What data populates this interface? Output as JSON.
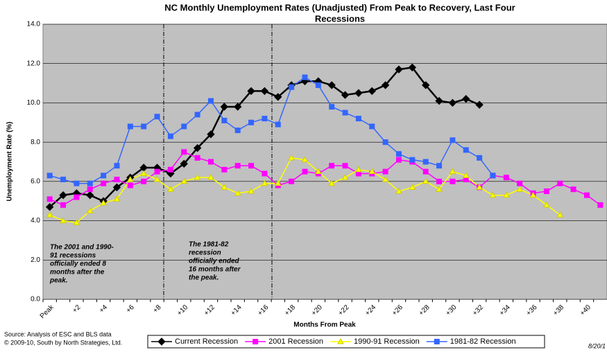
{
  "chart_data": {
    "type": "line",
    "title": [
      "NC Monthly Unemployment Rates (Unadjusted) From Peak to Recovery, Last Four",
      "Recessions"
    ],
    "y_label": "Unemployment Rate (%)",
    "x_label": "Months From Peak",
    "categories": [
      "Peak",
      null,
      "+2",
      null,
      "+4",
      null,
      "+6",
      null,
      "+8",
      null,
      "+10",
      null,
      "+12",
      null,
      "+14",
      null,
      "+16",
      null,
      "+18",
      null,
      "+20",
      null,
      "+22",
      null,
      "+24",
      null,
      "+26",
      null,
      "+28",
      null,
      "+30",
      null,
      "+32",
      null,
      "+34",
      null,
      "+36",
      null,
      "+38",
      null,
      "+40",
      null
    ],
    "ylim": [
      0,
      14
    ],
    "yticks": [
      {
        "value": 0,
        "label": "0.0"
      },
      {
        "value": 2,
        "label": "2.0"
      },
      {
        "value": 4,
        "label": "4.0"
      },
      {
        "value": 6,
        "label": "6.0"
      },
      {
        "value": 8,
        "label": "8.0"
      },
      {
        "value": 10,
        "label": "10.0"
      },
      {
        "value": 12,
        "label": "12.0"
      },
      {
        "value": 14,
        "label": "14.0"
      }
    ],
    "grid": true,
    "series": [
      {
        "name": "Current Recession",
        "color": "#000000",
        "marker": "diamond",
        "values": [
          4.7,
          5.3,
          5.4,
          5.3,
          5.0,
          5.7,
          6.2,
          6.7,
          6.7,
          6.4,
          6.9,
          7.7,
          8.4,
          9.8,
          9.8,
          10.6,
          10.6,
          10.3,
          10.9,
          11.1,
          11.1,
          10.9,
          10.4,
          10.5,
          10.6,
          10.9,
          11.7,
          11.8,
          10.9,
          10.1,
          10.0,
          10.2,
          9.9,
          null,
          null,
          null,
          null,
          null,
          null,
          null,
          null,
          null
        ]
      },
      {
        "name": "2001 Recession",
        "color": "#ff00ff",
        "marker": "square",
        "values": [
          5.1,
          4.8,
          5.2,
          5.6,
          5.9,
          6.1,
          5.8,
          6.0,
          6.5,
          6.6,
          7.5,
          7.2,
          7.0,
          6.6,
          6.8,
          6.8,
          6.4,
          5.8,
          6.0,
          6.5,
          6.4,
          6.8,
          6.8,
          6.4,
          6.4,
          6.5,
          7.1,
          7.0,
          6.5,
          6.0,
          6.0,
          6.1,
          5.7,
          6.3,
          6.2,
          5.9,
          5.4,
          5.5,
          5.9,
          5.6,
          5.3,
          4.8
        ]
      },
      {
        "name": "1990-91 Recession",
        "color": "#ffff00",
        "marker": "triangle",
        "values": [
          4.3,
          4.0,
          3.9,
          4.5,
          4.9,
          5.1,
          6.1,
          6.4,
          6.1,
          5.6,
          6.0,
          6.2,
          6.2,
          5.7,
          5.4,
          5.5,
          5.9,
          5.9,
          7.2,
          7.1,
          6.5,
          5.9,
          6.2,
          6.6,
          6.5,
          6.1,
          5.5,
          5.7,
          6.0,
          5.6,
          6.5,
          6.3,
          5.7,
          5.3,
          5.3,
          5.6,
          5.3,
          4.8,
          4.3,
          null,
          null,
          null
        ]
      },
      {
        "name": "1981-82 Recession",
        "color": "#3366ff",
        "marker": "square",
        "values": [
          6.3,
          6.1,
          5.9,
          5.9,
          6.3,
          6.8,
          8.8,
          8.8,
          9.3,
          8.3,
          8.8,
          9.4,
          10.1,
          9.1,
          8.6,
          9.0,
          9.2,
          8.9,
          10.8,
          11.3,
          10.9,
          9.8,
          9.5,
          9.2,
          8.8,
          8.0,
          7.4,
          7.1,
          7.0,
          6.8,
          8.1,
          7.6,
          7.2,
          6.3,
          null,
          null,
          null,
          null,
          null,
          null,
          null,
          null
        ]
      }
    ],
    "annotations": [
      [
        "The 2001 and 1990-",
        "91 recessions",
        "officially ended 8",
        "months after the",
        "peak."
      ],
      [
        "The 1981-82",
        "recession",
        "officially ended",
        "16 months after",
        "the peak."
      ]
    ],
    "source": [
      "Source:  Analysis of  ESC and BLS data",
      "© 2009-10, South by North Strategies, Ltd."
    ],
    "date": "8/20/1"
  }
}
